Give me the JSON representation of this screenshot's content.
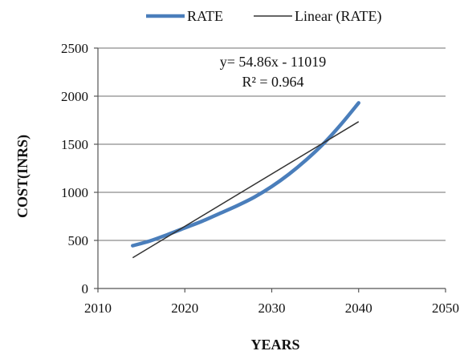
{
  "chart_data": {
    "type": "line",
    "title": "",
    "xlabel": "YEARS",
    "ylabel": "COST(INRS)",
    "xlim": [
      2010,
      2050
    ],
    "ylim": [
      0,
      2500
    ],
    "xticks": [
      2010,
      2020,
      2030,
      2040,
      2050
    ],
    "yticks": [
      0,
      500,
      1000,
      1500,
      2000,
      2500
    ],
    "grid": true,
    "legend_position": "top",
    "series": [
      {
        "name": "RATE",
        "color": "#4A7EBB",
        "x": [
          2014,
          2016,
          2018,
          2020,
          2022,
          2024,
          2026,
          2028,
          2030,
          2032,
          2034,
          2036,
          2038,
          2040
        ],
        "y": [
          445,
          495,
          560,
          630,
          700,
          780,
          860,
          950,
          1060,
          1190,
          1340,
          1510,
          1710,
          1930
        ]
      },
      {
        "name": "Linear (RATE)",
        "color": "#333333",
        "x": [
          2014,
          2040
        ],
        "y": [
          320,
          1735
        ]
      }
    ],
    "annotations": [
      "y= 54.86x - 11019",
      "R² = 0.964"
    ]
  }
}
